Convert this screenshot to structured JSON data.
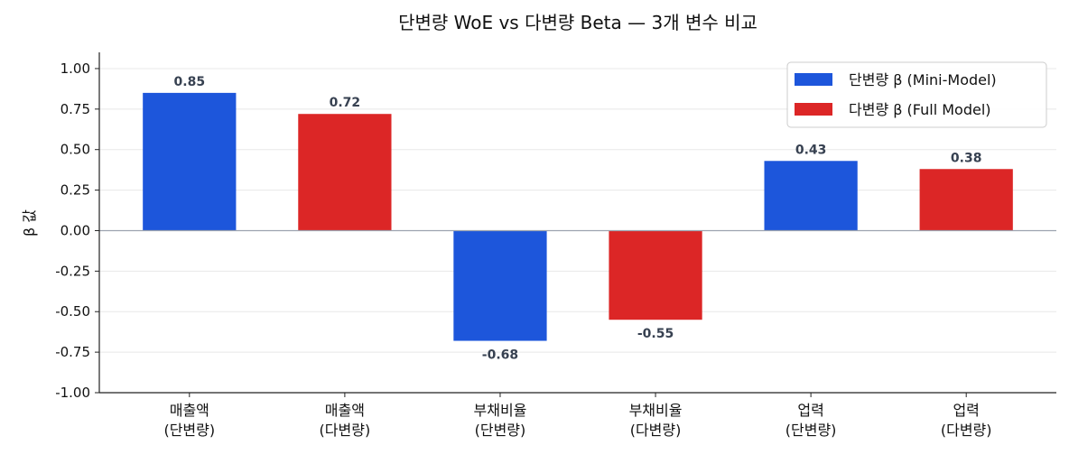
{
  "chart_data": {
    "type": "bar",
    "title": "단변량 WoE vs 다변량 Beta — 3개 변수 비교",
    "xlabel": "",
    "ylabel": "β 값",
    "ylim": [
      -1.0,
      1.1
    ],
    "yticks": [
      "1.00",
      "0.75",
      "0.50",
      "0.25",
      "0.00",
      "-0.25",
      "-0.50",
      "-0.75",
      "-1.00"
    ],
    "ytick_values": [
      1.0,
      0.75,
      0.5,
      0.25,
      0,
      -0.25,
      -0.5,
      -0.75,
      -1.0
    ],
    "grid": "y",
    "legend_position": "top-right",
    "categories": [
      "매출액\n(단변량)",
      "매출액\n(다변량)",
      "부채비율\n(단변량)",
      "부채비율\n(다변량)",
      "업력\n(단변량)",
      "업력\n(다변량)"
    ],
    "values": [
      0.85,
      0.72,
      -0.68,
      -0.55,
      0.43,
      0.38
    ],
    "value_labels": [
      "0.85",
      "0.72",
      "-0.68",
      "-0.55",
      "0.43",
      "0.38"
    ],
    "bar_series": [
      0,
      1,
      0,
      1,
      0,
      1
    ],
    "series": [
      {
        "name": "단변량 β (Mini-Model)",
        "color": "#1d56db"
      },
      {
        "name": "다변량 β (Full Model)",
        "color": "#dc2626"
      }
    ]
  }
}
